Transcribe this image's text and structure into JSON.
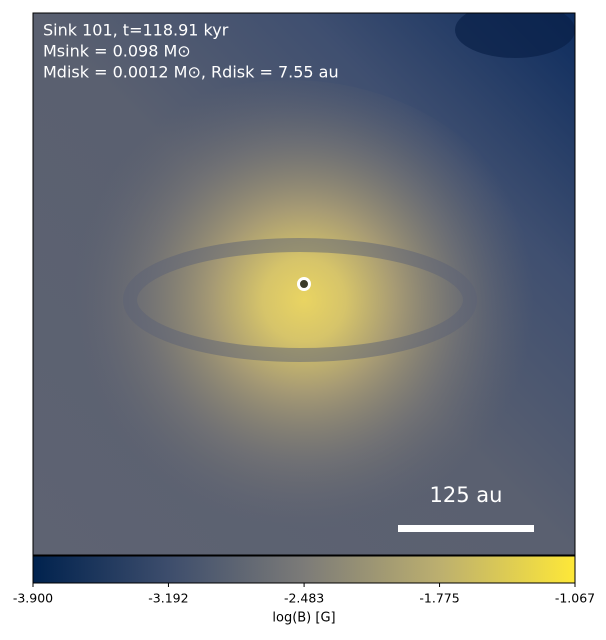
{
  "chart_data": {
    "type": "image",
    "annotations": [
      "Sink 101, t=118.91 kyr",
      "Msink = 0.098 M⊙",
      "Mdisk = 0.0012 M⊙, Rdisk = 7.55 au"
    ],
    "scale_bar_label": "125 au",
    "colormap": "cividis",
    "colorbar_label": "log(B) [G]",
    "clim": [
      -3.9,
      -1.067
    ],
    "cticks": [
      {
        "value": -3.9,
        "label": "-3.900"
      },
      -3.192,
      -2.483,
      -1.775,
      -1.067
    ]
  }
}
